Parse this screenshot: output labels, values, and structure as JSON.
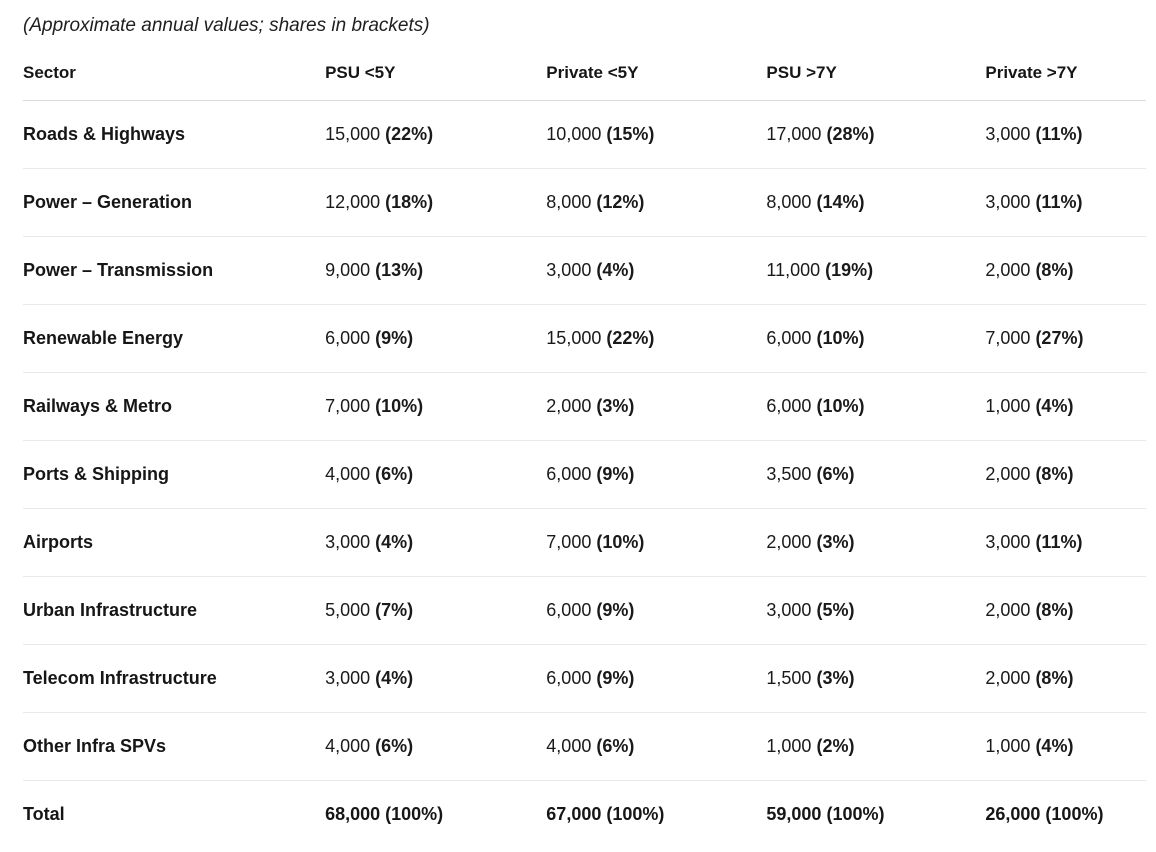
{
  "caption": "(Approximate annual values; shares in brackets)",
  "colors": {
    "text": "#1a1a1a",
    "header_divider": "#d9d9d9",
    "row_divider": "#e9e9e9",
    "background": "#ffffff"
  },
  "table": {
    "columns": [
      "Sector",
      "PSU <5Y",
      "Private <5Y",
      "PSU >7Y",
      "Private >7Y"
    ],
    "rows": [
      {
        "sector": "Roads & Highways",
        "cells": [
          [
            "15,000",
            "(22%)"
          ],
          [
            "10,000",
            "(15%)"
          ],
          [
            "17,000",
            "(28%)"
          ],
          [
            "3,000",
            "(11%)"
          ]
        ]
      },
      {
        "sector": "Power – Generation",
        "cells": [
          [
            "12,000",
            "(18%)"
          ],
          [
            "8,000",
            "(12%)"
          ],
          [
            "8,000",
            "(14%)"
          ],
          [
            "3,000",
            "(11%)"
          ]
        ]
      },
      {
        "sector": "Power – Transmission",
        "cells": [
          [
            "9,000",
            "(13%)"
          ],
          [
            "3,000",
            "(4%)"
          ],
          [
            "11,000",
            "(19%)"
          ],
          [
            "2,000",
            "(8%)"
          ]
        ]
      },
      {
        "sector": "Renewable Energy",
        "cells": [
          [
            "6,000",
            "(9%)"
          ],
          [
            "15,000",
            "(22%)"
          ],
          [
            "6,000",
            "(10%)"
          ],
          [
            "7,000",
            "(27%)"
          ]
        ]
      },
      {
        "sector": "Railways & Metro",
        "cells": [
          [
            "7,000",
            "(10%)"
          ],
          [
            "2,000",
            "(3%)"
          ],
          [
            "6,000",
            "(10%)"
          ],
          [
            "1,000",
            "(4%)"
          ]
        ]
      },
      {
        "sector": "Ports & Shipping",
        "cells": [
          [
            "4,000",
            "(6%)"
          ],
          [
            "6,000",
            "(9%)"
          ],
          [
            "3,500",
            "(6%)"
          ],
          [
            "2,000",
            "(8%)"
          ]
        ]
      },
      {
        "sector": "Airports",
        "cells": [
          [
            "3,000",
            "(4%)"
          ],
          [
            "7,000",
            "(10%)"
          ],
          [
            "2,000",
            "(3%)"
          ],
          [
            "3,000",
            "(11%)"
          ]
        ]
      },
      {
        "sector": "Urban Infrastructure",
        "cells": [
          [
            "5,000",
            "(7%)"
          ],
          [
            "6,000",
            "(9%)"
          ],
          [
            "3,000",
            "(5%)"
          ],
          [
            "2,000",
            "(8%)"
          ]
        ]
      },
      {
        "sector": "Telecom Infrastructure",
        "cells": [
          [
            "3,000",
            "(4%)"
          ],
          [
            "6,000",
            "(9%)"
          ],
          [
            "1,500",
            "(3%)"
          ],
          [
            "2,000",
            "(8%)"
          ]
        ]
      },
      {
        "sector": "Other Infra SPVs",
        "cells": [
          [
            "4,000",
            "(6%)"
          ],
          [
            "4,000",
            "(6%)"
          ],
          [
            "1,000",
            "(2%)"
          ],
          [
            "1,000",
            "(4%)"
          ]
        ]
      }
    ],
    "total_row": {
      "sector": "Total",
      "cells": [
        "68,000 (100%)",
        "67,000 (100%)",
        "59,000 (100%)",
        "26,000 (100%)"
      ]
    }
  },
  "chart_data": {
    "type": "table",
    "title": "(Approximate annual values; shares in brackets)",
    "categories": [
      "Roads & Highways",
      "Power – Generation",
      "Power – Transmission",
      "Renewable Energy",
      "Railways & Metro",
      "Ports & Shipping",
      "Airports",
      "Urban Infrastructure",
      "Telecom Infrastructure",
      "Other Infra SPVs"
    ],
    "series": [
      {
        "name": "PSU <5Y",
        "values": [
          15000,
          12000,
          9000,
          6000,
          7000,
          4000,
          3000,
          5000,
          3000,
          4000
        ],
        "shares_pct": [
          22,
          18,
          13,
          9,
          10,
          6,
          4,
          7,
          4,
          6
        ],
        "total": 68000,
        "total_share_pct": 100
      },
      {
        "name": "Private <5Y",
        "values": [
          10000,
          8000,
          3000,
          15000,
          2000,
          6000,
          7000,
          6000,
          6000,
          4000
        ],
        "shares_pct": [
          15,
          12,
          4,
          22,
          3,
          9,
          10,
          9,
          9,
          6
        ],
        "total": 67000,
        "total_share_pct": 100
      },
      {
        "name": "PSU >7Y",
        "values": [
          17000,
          8000,
          11000,
          6000,
          6000,
          3500,
          2000,
          3000,
          1500,
          1000
        ],
        "shares_pct": [
          28,
          14,
          19,
          10,
          10,
          6,
          3,
          5,
          3,
          2
        ],
        "total": 59000,
        "total_share_pct": 100
      },
      {
        "name": "Private >7Y",
        "values": [
          3000,
          3000,
          2000,
          7000,
          1000,
          2000,
          3000,
          2000,
          2000,
          1000
        ],
        "shares_pct": [
          11,
          11,
          8,
          27,
          4,
          8,
          11,
          8,
          8,
          4
        ],
        "total": 26000,
        "total_share_pct": 100
      }
    ]
  }
}
